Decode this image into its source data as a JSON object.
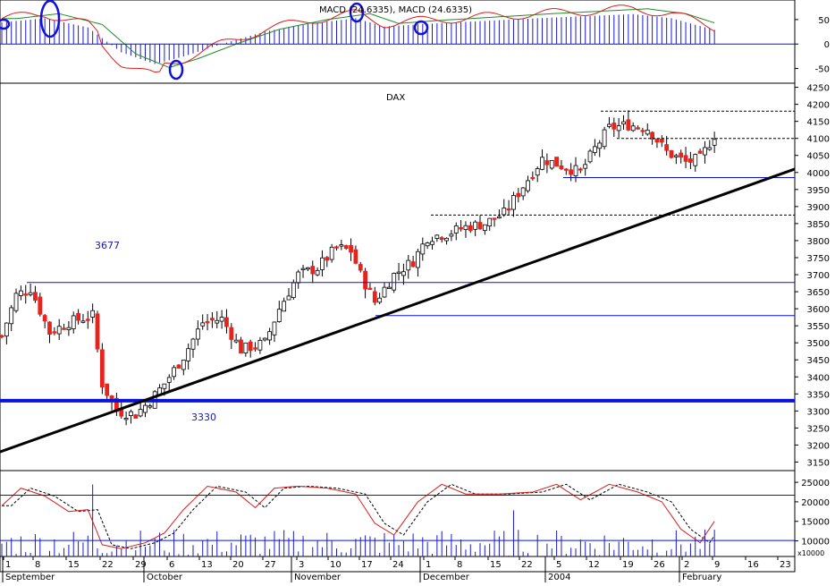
{
  "colors": {
    "background": "#ffffff",
    "grid": "#000000",
    "candle_up": "#ffffff",
    "candle_down": "#e8231c",
    "candle_wick": "#000000",
    "support_line": "#0a14d8",
    "trend_line": "#000000",
    "macd_hist": "#1a1ad0",
    "macd_line": "#d81e1e",
    "signal_line": "#1e8c28",
    "volume_bar": "#1a1ad0",
    "stoch_k": "#d81e1e",
    "stoch_d": "#000000",
    "circle": "#1010e0"
  },
  "chart_data": [
    {
      "type": "line",
      "panel": "macd",
      "title": "MACD (24.6335), MACD (24.6335)",
      "y_ticks": [
        "50",
        "0",
        "-50"
      ],
      "ylim": [
        -80,
        90
      ],
      "markers": [
        "circle",
        "circle",
        "circle",
        "circle",
        "circle"
      ]
    },
    {
      "type": "candlestick",
      "panel": "price",
      "title": "DAX",
      "y_ticks": [
        "4250",
        "4200",
        "4150",
        "4100",
        "4050",
        "4000",
        "3950",
        "3900",
        "3850",
        "3800",
        "3750",
        "3700",
        "3650",
        "3600",
        "3550",
        "3500",
        "3450",
        "3400",
        "3350",
        "3300",
        "3250",
        "3200",
        "3150"
      ],
      "ylim": [
        3125,
        4262
      ],
      "annotations": [
        "3677",
        "3330"
      ],
      "horizontal_levels": [
        3677,
        3580,
        3330,
        3985,
        4180,
        4100,
        3875
      ],
      "trend_line": {
        "from": 3180,
        "to": 4010
      }
    },
    {
      "type": "line",
      "panel": "volume_stochastic",
      "y_ticks": [
        "25000",
        "20000",
        "15000",
        "10000"
      ],
      "unit_label": "x10000",
      "ylim": [
        6000,
        28000
      ],
      "horizontal_levels": [
        21700,
        10100
      ]
    }
  ],
  "x_axis": {
    "day_labels": [
      "1",
      "8",
      "15",
      "22",
      "29",
      "6",
      "13",
      "20",
      "27",
      "3",
      "10",
      "17",
      "24",
      "1",
      "8",
      "15",
      "22",
      "5",
      "12",
      "19",
      "26",
      "2",
      "9",
      "16",
      "23"
    ],
    "month_labels": [
      "September",
      "October",
      "November",
      "December",
      "2004",
      "February"
    ]
  }
}
